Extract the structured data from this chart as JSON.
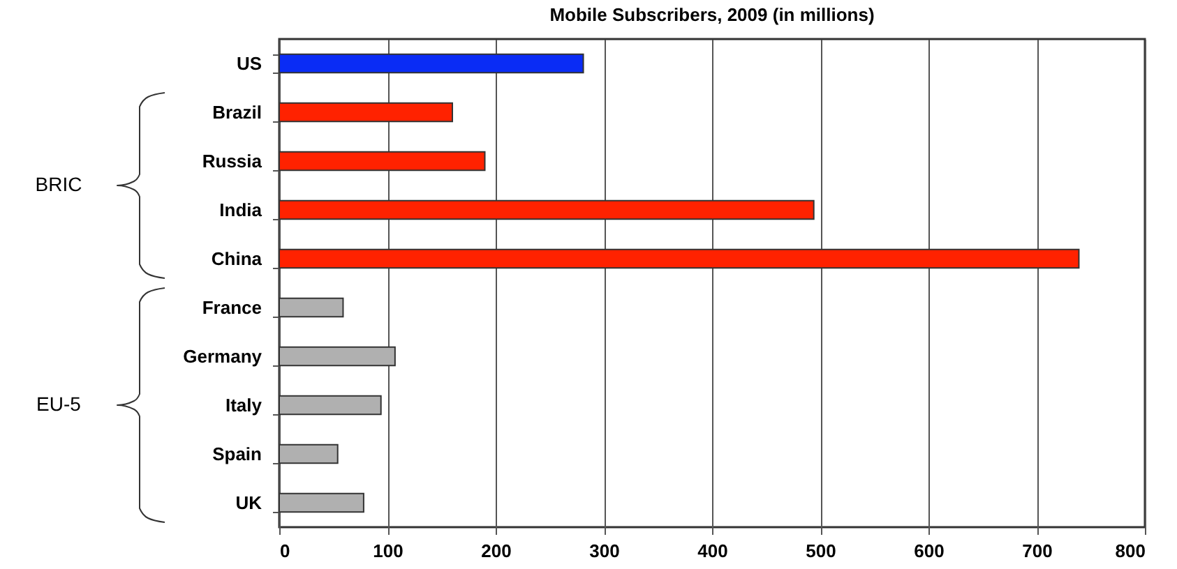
{
  "chart_data": {
    "type": "bar",
    "orientation": "horizontal",
    "title": "Mobile Subscribers, 2009 (in millions)",
    "categories": [
      "US",
      "Brazil",
      "Russia",
      "India",
      "China",
      "France",
      "Germany",
      "Italy",
      "Spain",
      "UK"
    ],
    "values": [
      281,
      160,
      190,
      494,
      739,
      59,
      107,
      94,
      54,
      78
    ],
    "colors": [
      "#0a2cf5",
      "#ff2200",
      "#ff2200",
      "#ff2200",
      "#ff2200",
      "#b0b0b0",
      "#b0b0b0",
      "#b0b0b0",
      "#b0b0b0",
      "#b0b0b0"
    ],
    "xlim": [
      0,
      800
    ],
    "xticks": [
      0,
      100,
      200,
      300,
      400,
      500,
      600,
      700,
      800
    ],
    "grid": "x",
    "annotations": [
      "BRIC",
      "EU-5"
    ]
  }
}
